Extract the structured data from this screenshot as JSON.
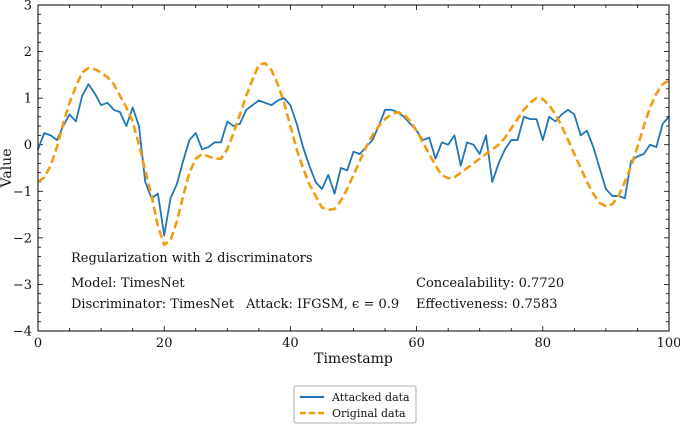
{
  "chart_data": {
    "type": "line",
    "xlabel": "Timestamp",
    "ylabel": "Value",
    "xlim": [
      0,
      100
    ],
    "ylim": [
      -4,
      3
    ],
    "x_ticks": [
      0,
      20,
      40,
      60,
      80,
      100
    ],
    "y_ticks": [
      -4,
      -3,
      -2,
      -1,
      0,
      1,
      2,
      3
    ],
    "grid": false,
    "legend_position": "below",
    "series": [
      {
        "name": "Attacked data",
        "color": "#1f77b4",
        "style": "solid",
        "x": [
          0,
          1,
          2,
          3,
          4,
          5,
          6,
          7,
          8,
          9,
          10,
          11,
          12,
          13,
          14,
          15,
          16,
          17,
          18,
          19,
          20,
          21,
          22,
          23,
          24,
          25,
          26,
          27,
          28,
          29,
          30,
          31,
          32,
          33,
          34,
          35,
          36,
          37,
          38,
          39,
          40,
          41,
          42,
          43,
          44,
          45,
          46,
          47,
          48,
          49,
          50,
          51,
          52,
          53,
          54,
          55,
          56,
          57,
          58,
          59,
          60,
          61,
          62,
          63,
          64,
          65,
          66,
          67,
          68,
          69,
          70,
          71,
          72,
          73,
          74,
          75,
          76,
          77,
          78,
          79,
          80,
          81,
          82,
          83,
          84,
          85,
          86,
          87,
          88,
          89,
          90,
          91,
          92,
          93,
          94,
          95,
          96,
          97,
          98,
          99,
          100
        ],
        "values": [
          -0.1,
          0.25,
          0.2,
          0.1,
          0.4,
          0.65,
          0.5,
          1.05,
          1.3,
          1.1,
          0.85,
          0.9,
          0.75,
          0.7,
          0.4,
          0.8,
          0.4,
          -0.8,
          -1.15,
          -1.05,
          -1.95,
          -1.15,
          -0.85,
          -0.35,
          0.1,
          0.25,
          -0.1,
          -0.05,
          0.05,
          0.05,
          0.5,
          0.4,
          0.45,
          0.75,
          0.85,
          0.95,
          0.9,
          0.85,
          0.95,
          1.0,
          0.85,
          0.45,
          -0.05,
          -0.45,
          -0.8,
          -0.95,
          -0.65,
          -1.05,
          -0.5,
          -0.55,
          -0.15,
          -0.2,
          -0.05,
          0.1,
          0.4,
          0.75,
          0.75,
          0.7,
          0.6,
          0.45,
          0.3,
          0.1,
          0.15,
          -0.3,
          0.05,
          0.0,
          0.2,
          -0.45,
          0.05,
          0.0,
          -0.2,
          0.2,
          -0.8,
          -0.4,
          -0.1,
          0.1,
          0.1,
          0.6,
          0.55,
          0.55,
          0.1,
          0.6,
          0.5,
          0.65,
          0.75,
          0.65,
          0.2,
          0.3,
          -0.05,
          -0.5,
          -0.95,
          -1.1,
          -1.1,
          -1.15,
          -0.35,
          -0.25,
          -0.2,
          0.0,
          -0.05,
          0.45,
          0.6
        ]
      },
      {
        "name": "Original data",
        "color": "#f39c12",
        "style": "dashed",
        "x": [
          0,
          1,
          2,
          3,
          4,
          5,
          6,
          7,
          8,
          9,
          10,
          11,
          12,
          13,
          14,
          15,
          16,
          17,
          18,
          19,
          20,
          21,
          22,
          23,
          24,
          25,
          26,
          27,
          28,
          29,
          30,
          31,
          32,
          33,
          34,
          35,
          36,
          37,
          38,
          39,
          40,
          41,
          42,
          43,
          44,
          45,
          46,
          47,
          48,
          49,
          50,
          51,
          52,
          53,
          54,
          55,
          56,
          57,
          58,
          59,
          60,
          61,
          62,
          63,
          64,
          65,
          66,
          67,
          68,
          69,
          70,
          71,
          72,
          73,
          74,
          75,
          76,
          77,
          78,
          79,
          80,
          81,
          82,
          83,
          84,
          85,
          86,
          87,
          88,
          89,
          90,
          91,
          92,
          93,
          94,
          95,
          96,
          97,
          98,
          99,
          100
        ],
        "values": [
          -0.8,
          -0.7,
          -0.45,
          -0.05,
          0.45,
          0.9,
          1.25,
          1.55,
          1.65,
          1.62,
          1.55,
          1.45,
          1.3,
          1.05,
          0.8,
          0.5,
          0.0,
          -0.55,
          -1.1,
          -1.75,
          -2.15,
          -2.05,
          -1.65,
          -1.1,
          -0.6,
          -0.3,
          -0.2,
          -0.25,
          -0.3,
          -0.3,
          -0.1,
          0.25,
          0.65,
          1.05,
          1.4,
          1.72,
          1.75,
          1.6,
          1.3,
          0.9,
          0.4,
          -0.1,
          -0.5,
          -0.85,
          -1.1,
          -1.35,
          -1.4,
          -1.38,
          -1.2,
          -0.95,
          -0.65,
          -0.35,
          -0.05,
          0.2,
          0.4,
          0.55,
          0.65,
          0.7,
          0.65,
          0.5,
          0.3,
          0.05,
          -0.2,
          -0.45,
          -0.65,
          -0.72,
          -0.7,
          -0.6,
          -0.5,
          -0.4,
          -0.3,
          -0.2,
          -0.1,
          0.0,
          0.15,
          0.35,
          0.55,
          0.75,
          0.9,
          1.0,
          0.98,
          0.85,
          0.65,
          0.4,
          0.1,
          -0.2,
          -0.5,
          -0.8,
          -1.05,
          -1.25,
          -1.32,
          -1.28,
          -1.1,
          -0.8,
          -0.45,
          -0.05,
          0.4,
          0.8,
          1.1,
          1.3,
          1.38
        ]
      }
    ],
    "annotations": {
      "title": "Regularization with 2 discriminators",
      "model": "Model: TimesNet",
      "discriminator": "Discriminator: TimesNet",
      "attack": "Attack: IFGSM, ϵ = 0.9",
      "concealability": "Concealability: 0.7720",
      "effectiveness": "Effectiveness: 0.7583"
    }
  }
}
